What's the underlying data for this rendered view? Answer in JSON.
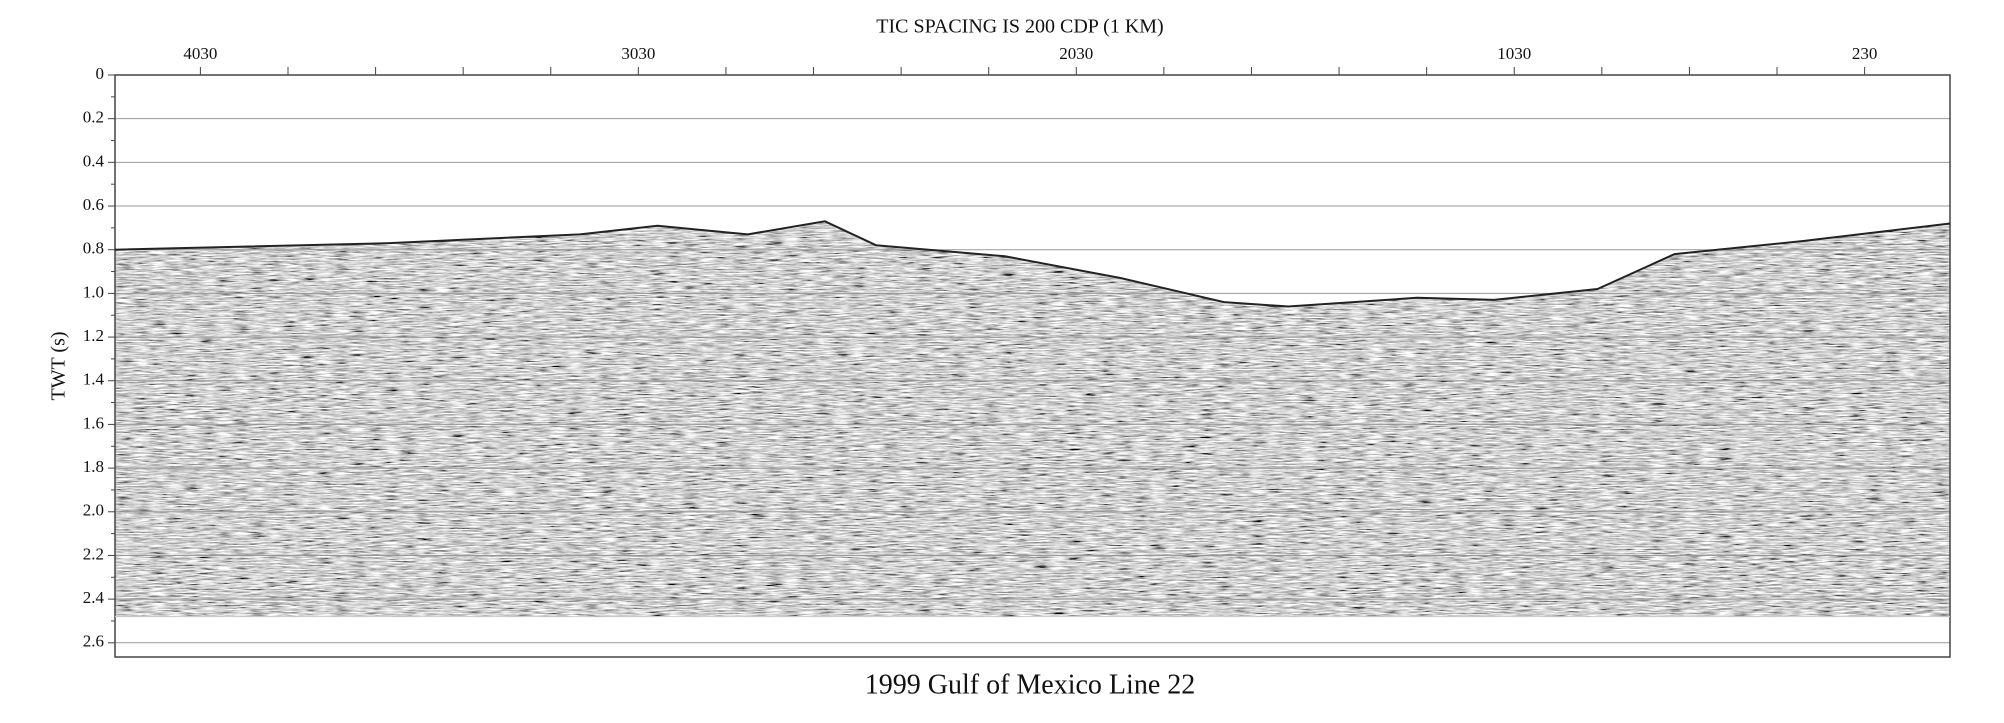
{
  "chart_data": {
    "type": "seismic",
    "title": "TIC SPACING IS 200 CDP (1 KM)",
    "caption": "1999 Gulf of Mexico Line 22",
    "ylabel": "TWT (s)",
    "xlim": [
      4225,
      35
    ],
    "xticks": [
      4030,
      3030,
      2030,
      1030,
      230
    ],
    "xminorticks": [
      3830,
      3630,
      3430,
      3230,
      2830,
      2630,
      2430,
      2230,
      1830,
      1630,
      1430,
      1230,
      830,
      630,
      430
    ],
    "ylim": [
      0,
      2.665
    ],
    "yticks": [
      0,
      0.2,
      0.4,
      0.6,
      0.8,
      {
        "value": 1,
        "label": "1.0"
      },
      1.2,
      1.4,
      1.6,
      1.8,
      {
        "value": 2,
        "label": "2.0"
      },
      2.2,
      2.4,
      2.6
    ],
    "yminorticks": [
      0.1,
      0.3,
      0.5,
      0.7,
      0.9,
      1.1,
      1.3,
      1.5,
      1.7,
      1.9,
      2.1,
      2.3,
      2.5
    ],
    "grid": true,
    "series": [
      {
        "color": "#222222",
        "x": [
          4225,
          3604,
          3163,
          2986,
          2883,
          2780,
          2604,
          2487,
          2193,
          1928,
          1693,
          1546,
          1252,
          1076,
          840,
          664,
          370,
          35
        ],
        "values": [
          0.8,
          0.77,
          0.73,
          0.69,
          0.71,
          0.73,
          0.67,
          0.78,
          0.83,
          0.93,
          1.04,
          1.06,
          1.02,
          1.03,
          0.98,
          0.82,
          0.76,
          0.68
        ]
      },
      {
        "color": "#cccccc",
        "x": [
          4225,
          35
        ],
        "values": [
          2.48,
          2.48
        ]
      }
    ]
  }
}
